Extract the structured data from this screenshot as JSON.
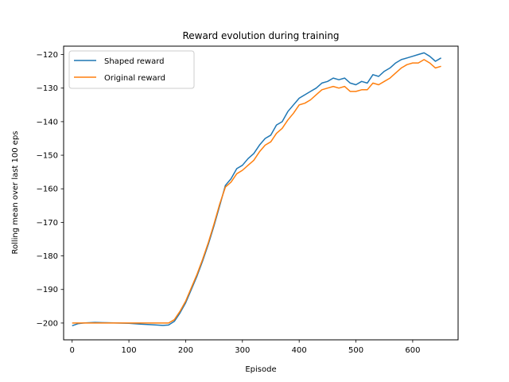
{
  "chart_data": {
    "type": "line",
    "title": "Reward evolution during training",
    "xlabel": "Episode",
    "ylabel": "Rolling mean over last 100 eps",
    "xlim": [
      -15,
      680
    ],
    "ylim": [
      -205,
      -117.5
    ],
    "xticks": [
      0,
      100,
      200,
      300,
      400,
      500,
      600
    ],
    "yticks": [
      -200,
      -190,
      -180,
      -170,
      -160,
      -150,
      -140,
      -130,
      -120
    ],
    "grid": false,
    "legend_position": "top-left",
    "series": [
      {
        "name": "Shaped reward",
        "color": "#1f77b4",
        "x": [
          0,
          10,
          20,
          40,
          60,
          80,
          100,
          120,
          140,
          160,
          170,
          180,
          190,
          200,
          210,
          220,
          230,
          240,
          250,
          260,
          270,
          280,
          290,
          300,
          310,
          320,
          330,
          340,
          350,
          360,
          370,
          380,
          390,
          400,
          410,
          420,
          430,
          440,
          450,
          460,
          470,
          480,
          490,
          500,
          510,
          520,
          530,
          540,
          550,
          560,
          570,
          580,
          590,
          600,
          610,
          620,
          630,
          640,
          650
        ],
        "y": [
          -200.8,
          -200.2,
          -200.0,
          -199.8,
          -199.9,
          -200.0,
          -200.1,
          -200.3,
          -200.5,
          -200.7,
          -200.6,
          -199.5,
          -197.0,
          -194.0,
          -190.0,
          -186.0,
          -181.5,
          -176.5,
          -171.0,
          -165.0,
          -159.0,
          -157.0,
          -154.0,
          -153.0,
          -151.0,
          -149.5,
          -147.0,
          -145.0,
          -144.0,
          -141.0,
          -140.0,
          -137.0,
          -135.0,
          -133.0,
          -132.0,
          -131.0,
          -130.0,
          -128.5,
          -128.0,
          -127.0,
          -127.5,
          -127.0,
          -128.5,
          -129.0,
          -128.0,
          -128.5,
          -126.0,
          -126.5,
          -125.0,
          -124.0,
          -122.5,
          -121.5,
          -121.0,
          -120.5,
          -120.0,
          -119.5,
          -120.5,
          -122.0,
          -121.0
        ]
      },
      {
        "name": "Original reward",
        "color": "#ff7f0e",
        "x": [
          0,
          10,
          20,
          40,
          60,
          80,
          100,
          120,
          140,
          160,
          170,
          180,
          190,
          200,
          210,
          220,
          230,
          240,
          250,
          260,
          270,
          280,
          290,
          300,
          310,
          320,
          330,
          340,
          350,
          360,
          370,
          380,
          390,
          400,
          410,
          420,
          430,
          440,
          450,
          460,
          470,
          480,
          490,
          500,
          510,
          520,
          530,
          540,
          550,
          560,
          570,
          580,
          590,
          600,
          610,
          620,
          630,
          640,
          650
        ],
        "y": [
          -200.0,
          -200.0,
          -200.0,
          -200.0,
          -200.0,
          -200.0,
          -200.0,
          -200.0,
          -200.0,
          -200.0,
          -200.0,
          -199.0,
          -196.5,
          -193.5,
          -189.5,
          -185.5,
          -181.0,
          -176.0,
          -170.5,
          -164.5,
          -159.5,
          -158.0,
          -155.5,
          -154.5,
          -153.0,
          -151.5,
          -149.0,
          -147.0,
          -146.0,
          -143.5,
          -142.0,
          -139.5,
          -137.5,
          -135.0,
          -134.5,
          -133.5,
          -132.0,
          -130.5,
          -130.0,
          -129.5,
          -130.0,
          -129.5,
          -131.0,
          -131.0,
          -130.5,
          -130.5,
          -128.5,
          -129.0,
          -128.0,
          -127.0,
          -125.5,
          -124.0,
          -123.0,
          -122.5,
          -122.5,
          -121.5,
          -122.5,
          -124.0,
          -123.5
        ]
      }
    ]
  }
}
